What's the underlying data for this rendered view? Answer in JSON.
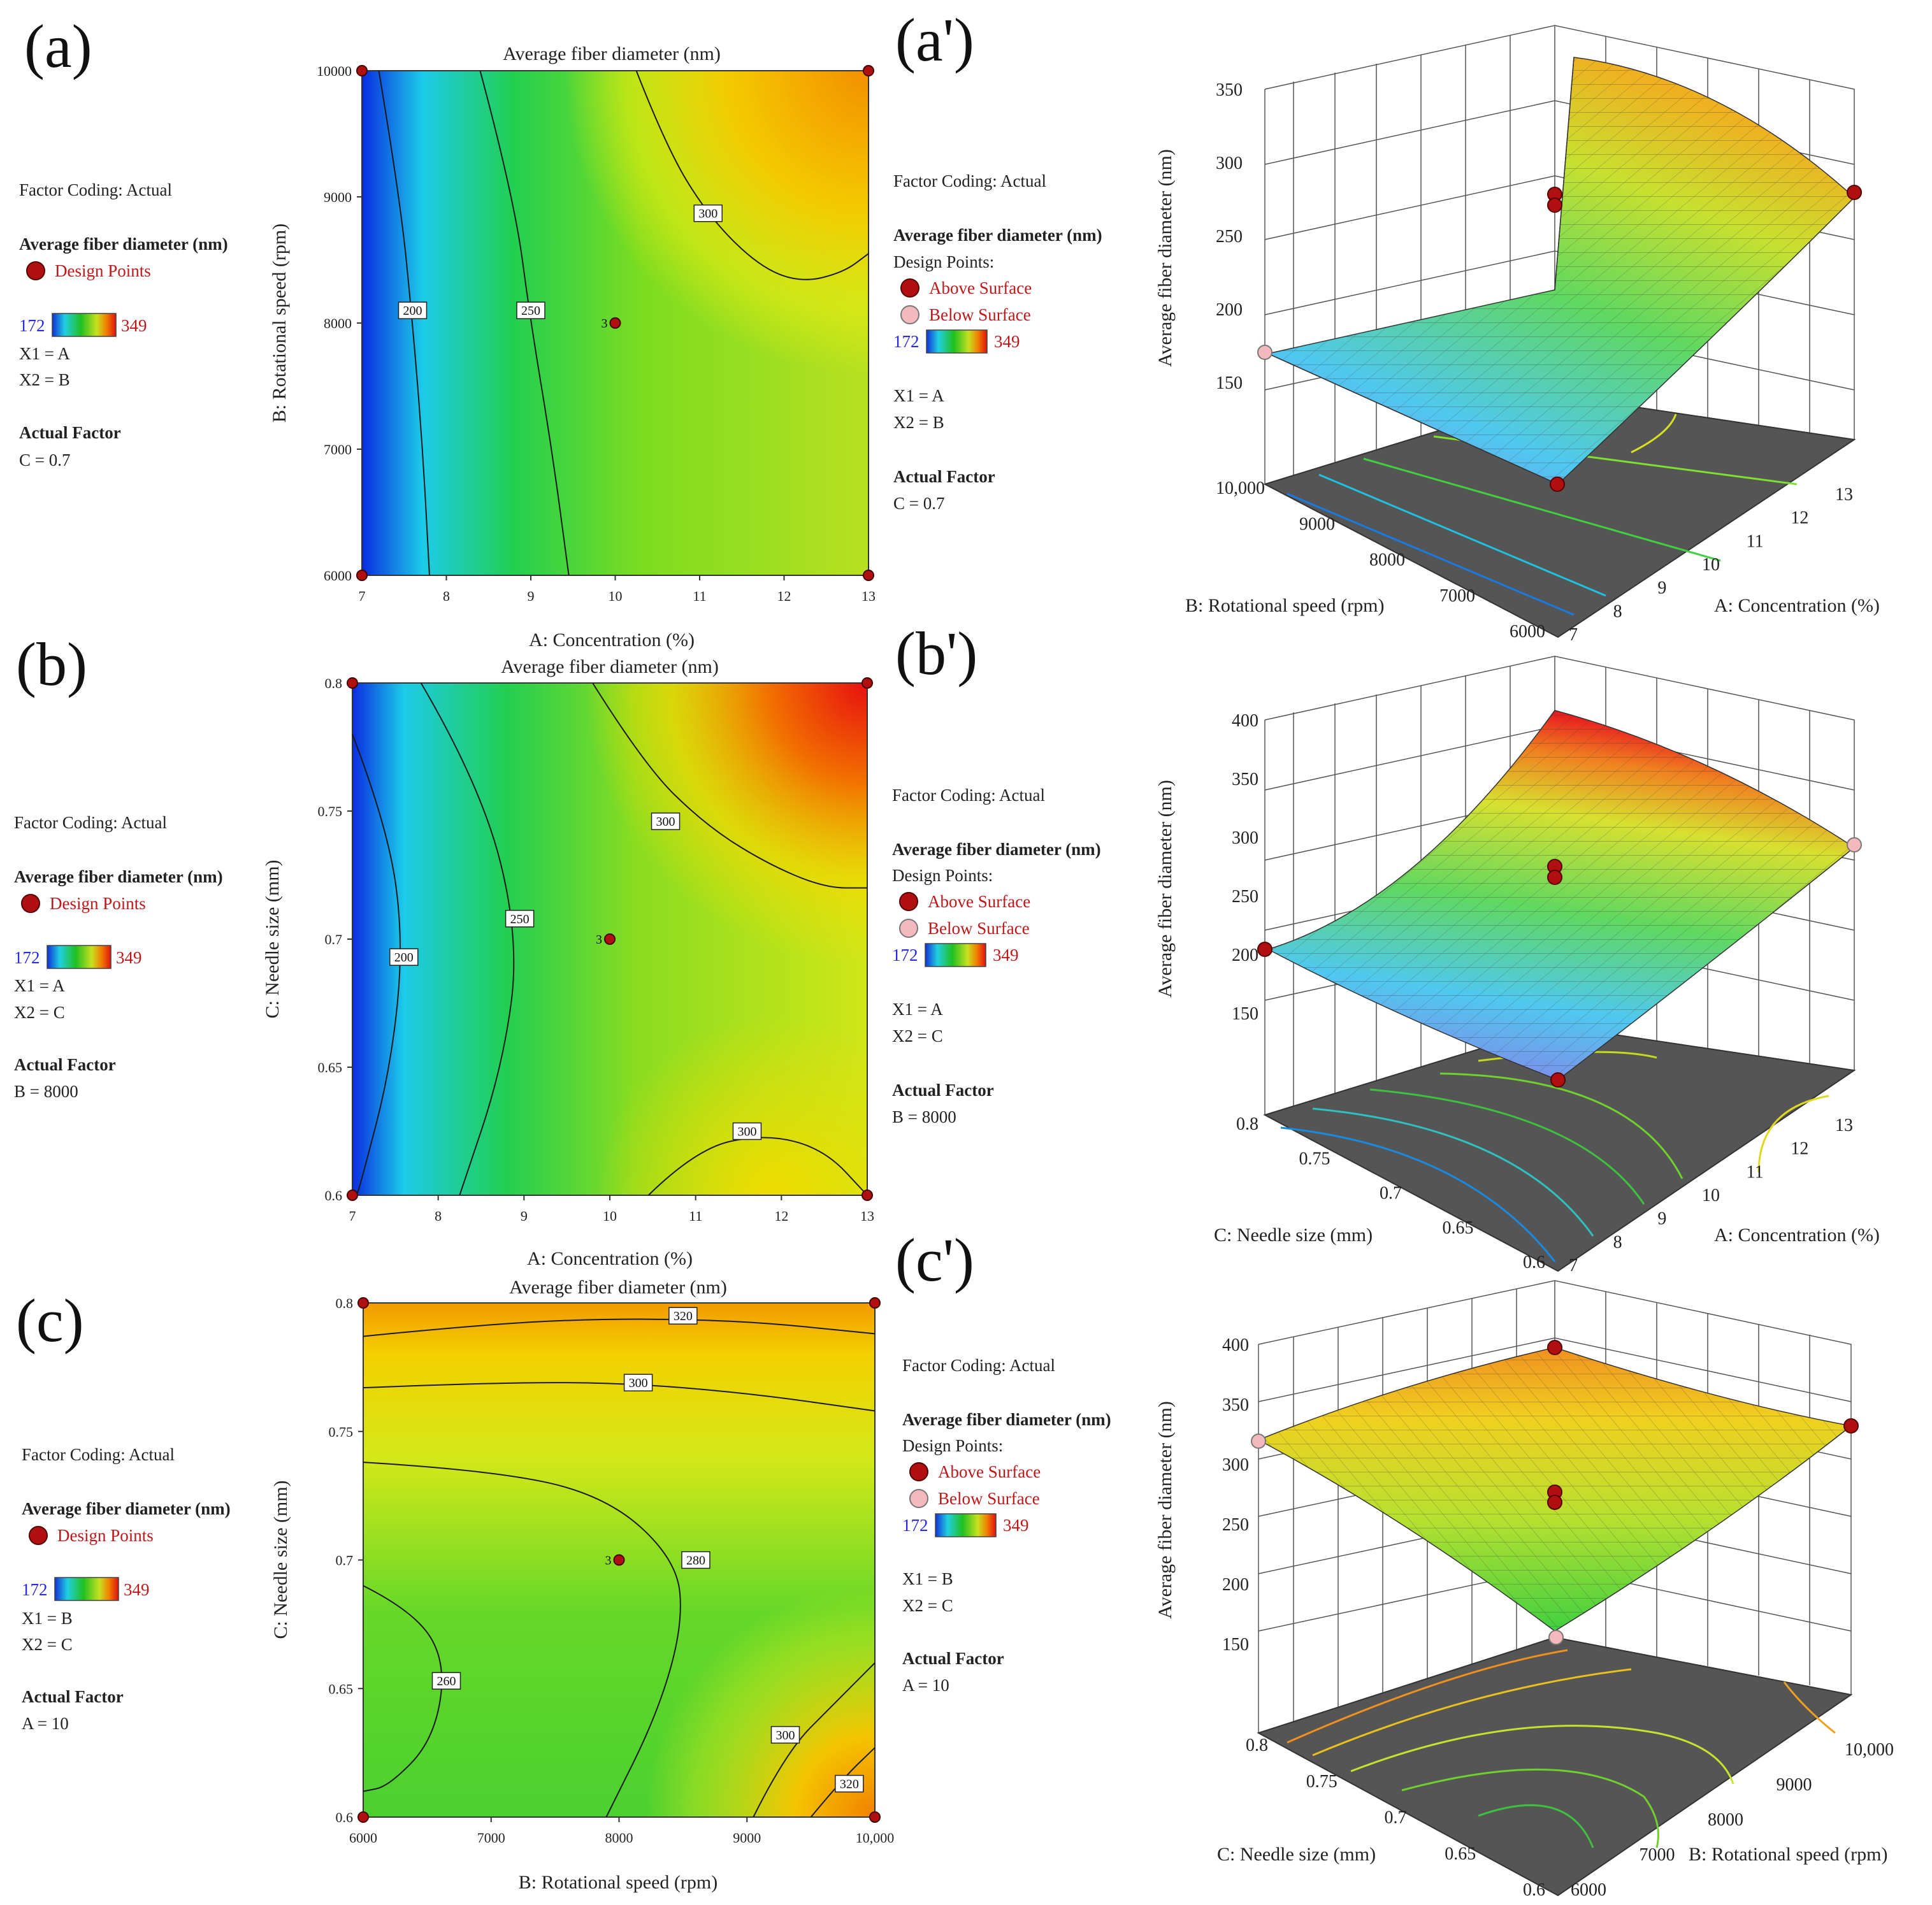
{
  "legend_common": {
    "factor_coding": "Factor Coding: Actual",
    "response": "Average fiber diameter (nm)",
    "design_points": "Design Points",
    "design_points_colon": "Design Points:",
    "above_surface": "Above Surface",
    "below_surface": "Below Surface",
    "scale_min": "172",
    "scale_max": "349",
    "actual_factor": "Actual Factor"
  },
  "colors": {
    "scale": [
      "#1030d8",
      "#20d0e0",
      "#20c020",
      "#c8e020",
      "#f0e000",
      "#f08000",
      "#e01010"
    ],
    "design_point": "#b01010",
    "below_surface": "#f3b9bd",
    "floor": "#555555"
  },
  "chart_data": [
    {
      "id": "a",
      "panel_label": "(a)",
      "type": "contour",
      "title": "Average fiber diameter (nm)",
      "xlabel": "A: Concentration (%)",
      "ylabel": "B: Rotational speed  (rpm)",
      "xlim": [
        7,
        13
      ],
      "ylim": [
        6000,
        10000
      ],
      "xticks": [
        "7",
        "8",
        "9",
        "10",
        "11",
        "12",
        "13"
      ],
      "yticks": [
        "6000",
        "7000",
        "8000",
        "9000",
        "10000"
      ],
      "contours": [
        {
          "level": 200,
          "label": "200",
          "points": [
            [
              7.2,
              10000
            ],
            [
              7.45,
              9000
            ],
            [
              7.6,
              8000
            ],
            [
              7.72,
              7000
            ],
            [
              7.8,
              6000
            ]
          ],
          "label_at": [
            7.6,
            8100
          ]
        },
        {
          "level": 250,
          "label": "250",
          "points": [
            [
              8.4,
              10000
            ],
            [
              8.8,
              9000
            ],
            [
              9.0,
              8000
            ],
            [
              9.25,
              7000
            ],
            [
              9.45,
              6000
            ]
          ],
          "label_at": [
            9.0,
            8100
          ]
        },
        {
          "level": 300,
          "label": "300",
          "points": [
            [
              10.25,
              10000
            ],
            [
              10.6,
              9400
            ],
            [
              11.1,
              8850
            ],
            [
              11.7,
              8450
            ],
            [
              12.2,
              8320
            ],
            [
              12.7,
              8400
            ],
            [
              13.0,
              8550
            ]
          ],
          "label_at": [
            11.1,
            8870
          ]
        }
      ],
      "design_points": [
        [
          7,
          10000
        ],
        [
          13,
          10000
        ],
        [
          7,
          6000
        ],
        [
          13,
          6000
        ],
        [
          10,
          8000
        ]
      ],
      "center_label": "3",
      "legend": {
        "x1": "X1 = A",
        "x2": "X2 = B",
        "actual_value": "C = 0.7"
      }
    },
    {
      "id": "b",
      "panel_label": "(b)",
      "type": "contour",
      "title": "Average fiber diameter (nm)",
      "xlabel": "A: Concentration (%)",
      "ylabel": "C: Needle size (mm)",
      "xlim": [
        7,
        13
      ],
      "ylim": [
        0.6,
        0.8
      ],
      "xticks": [
        "7",
        "8",
        "9",
        "10",
        "11",
        "12",
        "13"
      ],
      "yticks": [
        "0.6",
        "0.65",
        "0.7",
        "0.75",
        "0.8"
      ],
      "contours": [
        {
          "level": 200,
          "label": "200",
          "points": [
            [
              7.0,
              0.78
            ],
            [
              7.4,
              0.745
            ],
            [
              7.6,
              0.7
            ],
            [
              7.45,
              0.65
            ],
            [
              7.1,
              0.605
            ],
            [
              7.05,
              0.6
            ]
          ],
          "label_at": [
            7.6,
            0.693
          ]
        },
        {
          "level": 250,
          "label": "250",
          "points": [
            [
              7.8,
              0.8
            ],
            [
              8.5,
              0.76
            ],
            [
              8.95,
              0.7
            ],
            [
              8.75,
              0.65
            ],
            [
              8.25,
              0.6
            ]
          ],
          "label_at": [
            8.95,
            0.708
          ]
        },
        {
          "level": 300,
          "label": "300",
          "points": [
            [
              9.8,
              0.8
            ],
            [
              10.4,
              0.768
            ],
            [
              11.1,
              0.745
            ],
            [
              11.8,
              0.73
            ],
            [
              12.5,
              0.72
            ],
            [
              13.0,
              0.72
            ]
          ],
          "label_at": [
            10.65,
            0.746
          ]
        },
        {
          "level": 300,
          "label": "300",
          "points": [
            [
              10.45,
              0.6
            ],
            [
              11.0,
              0.618
            ],
            [
              11.8,
              0.624
            ],
            [
              12.5,
              0.618
            ],
            [
              13.0,
              0.6
            ]
          ],
          "label_at": [
            11.6,
            0.625
          ]
        }
      ],
      "design_points": [
        [
          7,
          0.8
        ],
        [
          13,
          0.8
        ],
        [
          7,
          0.6
        ],
        [
          13,
          0.6
        ],
        [
          10,
          0.7
        ]
      ],
      "center_label": "3",
      "legend": {
        "x1": "X1 = A",
        "x2": "X2 = C",
        "actual_value": "B = 8000"
      }
    },
    {
      "id": "c",
      "panel_label": "(c)",
      "type": "contour",
      "title": "Average fiber diameter (nm)",
      "xlabel": "B: Rotational speed  (rpm)",
      "ylabel": "C: Needle size (mm)",
      "xlim": [
        6000,
        10000
      ],
      "ylim": [
        0.6,
        0.8
      ],
      "xticks": [
        "6000",
        "7000",
        "8000",
        "9000",
        "10,000"
      ],
      "yticks": [
        "0.6",
        "0.65",
        "0.7",
        "0.75",
        "0.8"
      ],
      "contours": [
        {
          "level": 320,
          "label": "320",
          "points": [
            [
              6000,
              0.787
            ],
            [
              7000,
              0.792
            ],
            [
              8000,
              0.794
            ],
            [
              9000,
              0.793
            ],
            [
              10000,
              0.788
            ]
          ],
          "label_at": [
            8500,
            0.795
          ]
        },
        {
          "level": 300,
          "label": "300",
          "points": [
            [
              6000,
              0.767
            ],
            [
              7000,
              0.769
            ],
            [
              8000,
              0.769
            ],
            [
              9000,
              0.765
            ],
            [
              10000,
              0.758
            ]
          ],
          "label_at": [
            8150,
            0.769
          ]
        },
        {
          "level": 280,
          "label": "280",
          "points": [
            [
              6000,
              0.738
            ],
            [
              7000,
              0.735
            ],
            [
              7900,
              0.725
            ],
            [
              8450,
              0.7
            ],
            [
              8500,
              0.675
            ],
            [
              8300,
              0.64
            ],
            [
              7900,
              0.6
            ]
          ],
          "label_at": [
            8600,
            0.7
          ]
        },
        {
          "level": 260,
          "label": "260",
          "points": [
            [
              6000,
              0.69
            ],
            [
              6400,
              0.68
            ],
            [
              6650,
              0.66
            ],
            [
              6550,
              0.63
            ],
            [
              6200,
              0.612
            ],
            [
              6000,
              0.61
            ]
          ],
          "label_at": [
            6650,
            0.653
          ]
        },
        {
          "level": 300,
          "label": "300",
          "points": [
            [
              9050,
              0.6
            ],
            [
              9300,
              0.625
            ],
            [
              9700,
              0.645
            ],
            [
              10000,
              0.66
            ]
          ],
          "label_at": [
            9300,
            0.632
          ]
        },
        {
          "level": 320,
          "label": "320",
          "points": [
            [
              9500,
              0.6
            ],
            [
              9750,
              0.615
            ],
            [
              10000,
              0.627
            ]
          ],
          "label_at": [
            9800,
            0.613
          ]
        }
      ],
      "design_points": [
        [
          6000,
          0.8
        ],
        [
          10000,
          0.8
        ],
        [
          6000,
          0.6
        ],
        [
          10000,
          0.6
        ],
        [
          8000,
          0.7
        ]
      ],
      "center_label": "3",
      "legend": {
        "x1": "X1 = B",
        "x2": "X2 = C",
        "actual_value": "A = 10"
      }
    },
    {
      "id": "a3d",
      "panel_label": "(a')",
      "type": "surface3d",
      "zlabel": "Average fiber diameter (nm)",
      "xlabel": "A: Concentration (%)",
      "ylabel": "B: Rotational speed  (rpm)",
      "zticks": [
        "150",
        "200",
        "250",
        "300",
        "350"
      ],
      "xticks": [
        "7",
        "8",
        "9",
        "10",
        "11",
        "12",
        "13"
      ],
      "yticks": [
        "6000",
        "7000",
        "8000",
        "9000",
        "10,000"
      ],
      "zlim": [
        150,
        350
      ],
      "legend": {
        "x1": "X1 = A",
        "x2": "X2 = B",
        "actual_value": "C = 0.7"
      }
    },
    {
      "id": "b3d",
      "panel_label": "(b')",
      "type": "surface3d",
      "zlabel": "Average fiber diameter (nm)",
      "xlabel": "A: Concentration (%)",
      "ylabel": "C: Needle size (mm)",
      "zticks": [
        "150",
        "200",
        "250",
        "300",
        "350",
        "400"
      ],
      "xticks": [
        "7",
        "8",
        "9",
        "10",
        "11",
        "12",
        "13"
      ],
      "yticks": [
        "0.6",
        "0.65",
        "0.7",
        "0.75",
        "0.8"
      ],
      "zlim": [
        150,
        400
      ],
      "legend": {
        "x1": "X1 = A",
        "x2": "X2 = C",
        "actual_value": "B = 8000"
      }
    },
    {
      "id": "c3d",
      "panel_label": "(c')",
      "type": "surface3d",
      "zlabel": "Average fiber diameter (nm)",
      "xlabel": "B: Rotational speed  (rpm)",
      "ylabel": "C: Needle size (mm)",
      "zticks": [
        "150",
        "200",
        "250",
        "300",
        "350",
        "400"
      ],
      "xticks": [
        "6000",
        "7000",
        "8000",
        "9000",
        "10,000"
      ],
      "yticks": [
        "0.6",
        "0.65",
        "0.7",
        "0.75",
        "0.8"
      ],
      "zlim": [
        150,
        400
      ],
      "legend": {
        "x1": "X1 = B",
        "x2": "X2 = C",
        "actual_value": "A = 10"
      }
    }
  ]
}
